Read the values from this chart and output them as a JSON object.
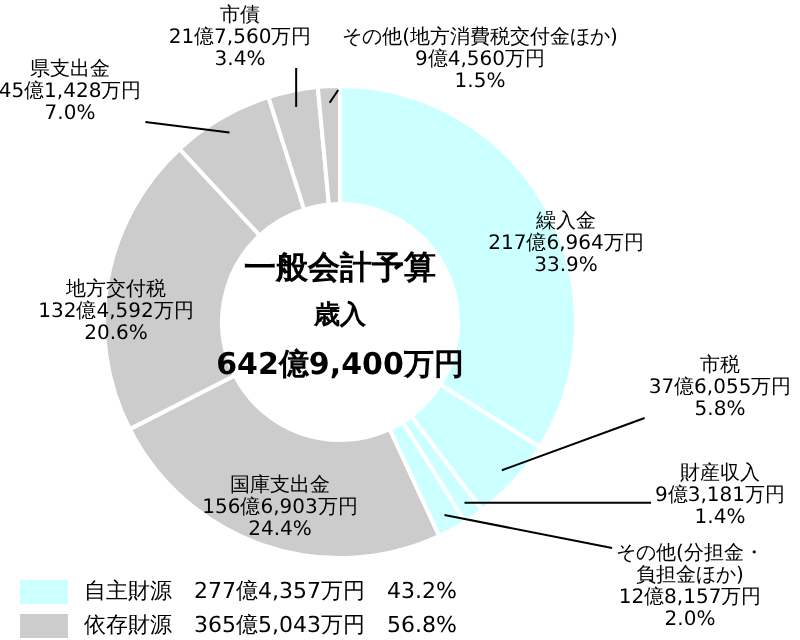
{
  "chart_data": {
    "type": "donut",
    "title": "一般会計予算",
    "subtitle": "歳入",
    "categories": [
      "繰入金",
      "市税",
      "財産収入",
      "その他(分担金・負担金ほか)",
      "国庫支出金",
      "地方交付税",
      "県支出金",
      "市債",
      "その他(地方消費税交付金ほか)"
    ],
    "values": [
      33.9,
      5.8,
      1.4,
      2.0,
      24.4,
      20.6,
      7.0,
      3.4,
      1.5
    ],
    "value_labels": [
      "217億6,964万円\n33.9%",
      "37億6,055万円\n5.8%",
      "9億3,181万円\n1.4%",
      "12億8,157万円\n2.0%",
      "156億6,903万円\n24.4%",
      "132億4,592万円\n20.6%",
      "45億1,428万円\n7.0%",
      "21億7,560万円\n3.4%",
      "9億4,560万円\n1.5%"
    ],
    "colors": [
      "#ccffff",
      "#ccffff",
      "#ccffff",
      "#ccffff",
      "#cccccc",
      "#cccccc",
      "#cccccc",
      "#cccccc",
      "#cccccc"
    ],
    "annotations": [
      "642億9,400万円",
      "自主財源　277億4,357万円　43.2%",
      "依存財源　365億5,043万円　56.8%"
    ],
    "legend": false
  }
}
